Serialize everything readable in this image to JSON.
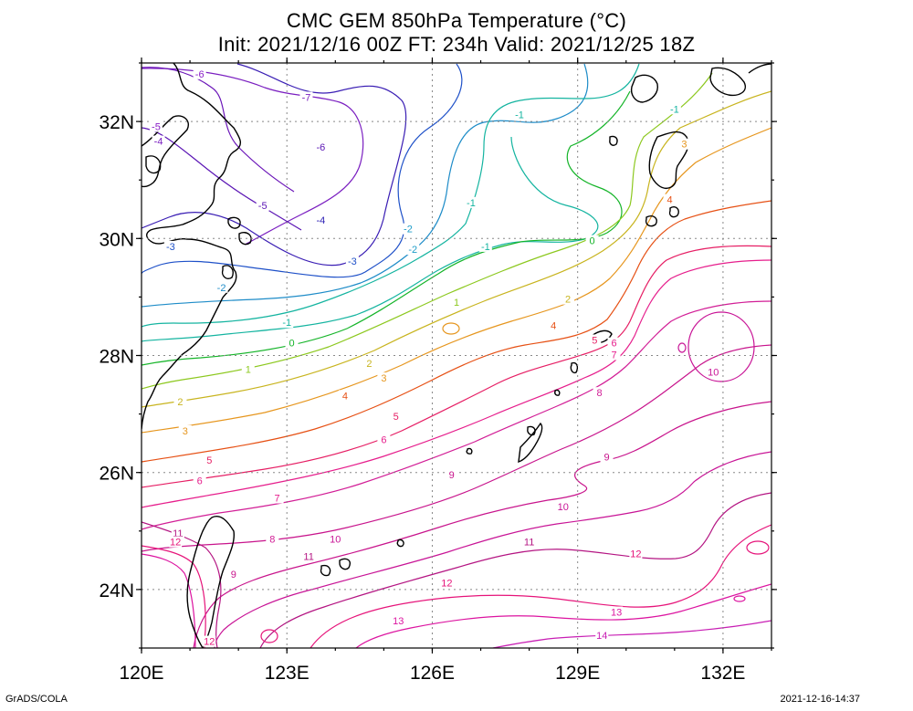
{
  "title": {
    "line1": "CMC GEM 850hPa Temperature (°C)",
    "line2": "Init: 2021/12/16 00Z  FT: 234h  Valid: 2021/12/25 18Z"
  },
  "axes": {
    "lon_ticks": [
      "120E",
      "123E",
      "126E",
      "129E",
      "132E"
    ],
    "lat_ticks": [
      "32N",
      "30N",
      "28N",
      "26N",
      "24N"
    ]
  },
  "footer": {
    "software": "GrADS/COLA",
    "timestamp": "2021-12-16-14:37"
  },
  "map": {
    "lon_range": [
      120,
      133
    ],
    "lat_range": [
      23,
      33
    ],
    "contour_interval_c": 1,
    "grid": "dotted",
    "contour_labels": [
      {
        "value": "-6",
        "lon": 121.2,
        "lat": 32.8,
        "color": "#8a1ec8"
      },
      {
        "value": "-7",
        "lon": 123.4,
        "lat": 32.4,
        "color": "#7a1ec0"
      },
      {
        "value": "-5",
        "lon": 120.3,
        "lat": 31.9,
        "color": "#8a1ec8"
      },
      {
        "value": "-4",
        "lon": 120.35,
        "lat": 31.65,
        "color": "#7a1ec0"
      },
      {
        "value": "-6",
        "lon": 123.7,
        "lat": 31.55,
        "color": "#5a14b4"
      },
      {
        "value": "-5",
        "lon": 122.5,
        "lat": 30.55,
        "color": "#5a14b4"
      },
      {
        "value": "-4",
        "lon": 123.7,
        "lat": 30.3,
        "color": "#2a1eb4"
      },
      {
        "value": "-3",
        "lon": 120.6,
        "lat": 29.85,
        "color": "#1e50c8"
      },
      {
        "value": "-3",
        "lon": 124.35,
        "lat": 29.6,
        "color": "#1e50c8"
      },
      {
        "value": "-2",
        "lon": 121.65,
        "lat": 29.15,
        "color": "#1e8cc8"
      },
      {
        "value": "-2",
        "lon": 125.5,
        "lat": 30.15,
        "color": "#1e9cc8"
      },
      {
        "value": "-2",
        "lon": 125.6,
        "lat": 29.8,
        "color": "#1e9cc8"
      },
      {
        "value": "-1",
        "lon": 127.8,
        "lat": 32.1,
        "color": "#14b4a0"
      },
      {
        "value": "-1",
        "lon": 126.8,
        "lat": 30.6,
        "color": "#14b4a0"
      },
      {
        "value": "-1",
        "lon": 127.1,
        "lat": 29.85,
        "color": "#14b4a0"
      },
      {
        "value": "-1",
        "lon": 123.0,
        "lat": 28.55,
        "color": "#14b4a0"
      },
      {
        "value": "0",
        "lon": 129.3,
        "lat": 29.95,
        "color": "#14b428"
      },
      {
        "value": "0",
        "lon": 123.1,
        "lat": 28.2,
        "color": "#14b428"
      },
      {
        "value": "1",
        "lon": 126.5,
        "lat": 28.9,
        "color": "#8cc81e"
      },
      {
        "value": "1",
        "lon": 122.2,
        "lat": 27.75,
        "color": "#8cc81e"
      },
      {
        "value": "-1",
        "lon": 131.0,
        "lat": 32.2,
        "color": "#14b4a0"
      },
      {
        "value": "2",
        "lon": 128.8,
        "lat": 28.95,
        "color": "#c8b41e"
      },
      {
        "value": "2",
        "lon": 124.7,
        "lat": 27.85,
        "color": "#c8b41e"
      },
      {
        "value": "2",
        "lon": 120.8,
        "lat": 27.2,
        "color": "#c8b41e"
      },
      {
        "value": "3",
        "lon": 131.2,
        "lat": 31.6,
        "color": "#e6961e"
      },
      {
        "value": "3",
        "lon": 125.0,
        "lat": 27.6,
        "color": "#e6961e"
      },
      {
        "value": "3",
        "lon": 120.9,
        "lat": 26.7,
        "color": "#e6961e"
      },
      {
        "value": "4",
        "lon": 130.9,
        "lat": 30.65,
        "color": "#e65014"
      },
      {
        "value": "4",
        "lon": 128.5,
        "lat": 28.5,
        "color": "#e65014"
      },
      {
        "value": "4",
        "lon": 124.2,
        "lat": 27.3,
        "color": "#e65014"
      },
      {
        "value": "5",
        "lon": 129.35,
        "lat": 28.25,
        "color": "#e61e64"
      },
      {
        "value": "5",
        "lon": 125.25,
        "lat": 26.95,
        "color": "#e61e64"
      },
      {
        "value": "5",
        "lon": 121.4,
        "lat": 26.2,
        "color": "#e61e64"
      },
      {
        "value": "6",
        "lon": 129.75,
        "lat": 28.2,
        "color": "#e61e8c"
      },
      {
        "value": "6",
        "lon": 125.0,
        "lat": 26.55,
        "color": "#e61e8c"
      },
      {
        "value": "6",
        "lon": 121.2,
        "lat": 25.85,
        "color": "#e61e8c"
      },
      {
        "value": "7",
        "lon": 129.75,
        "lat": 28.0,
        "color": "#e61e8c"
      },
      {
        "value": "7",
        "lon": 122.8,
        "lat": 25.55,
        "color": "#e61e8c"
      },
      {
        "value": "8",
        "lon": 129.45,
        "lat": 27.35,
        "color": "#d21e96"
      },
      {
        "value": "8",
        "lon": 122.7,
        "lat": 24.85,
        "color": "#d21e96"
      },
      {
        "value": "9",
        "lon": 129.6,
        "lat": 26.25,
        "color": "#c8148c"
      },
      {
        "value": "9",
        "lon": 126.4,
        "lat": 25.95,
        "color": "#c8148c"
      },
      {
        "value": "9",
        "lon": 121.9,
        "lat": 24.25,
        "color": "#c8148c"
      },
      {
        "value": "10",
        "lon": 131.8,
        "lat": 27.7,
        "color": "#c81496"
      },
      {
        "value": "10",
        "lon": 128.7,
        "lat": 25.4,
        "color": "#c81496"
      },
      {
        "value": "10",
        "lon": 124.0,
        "lat": 24.85,
        "color": "#c81496"
      },
      {
        "value": "11",
        "lon": 128.0,
        "lat": 24.8,
        "color": "#b41482"
      },
      {
        "value": "11",
        "lon": 123.45,
        "lat": 24.55,
        "color": "#b41482"
      },
      {
        "value": "11",
        "lon": 120.75,
        "lat": 24.95,
        "color": "#b41482"
      },
      {
        "value": "12",
        "lon": 130.2,
        "lat": 24.6,
        "color": "#e6147a"
      },
      {
        "value": "12",
        "lon": 126.3,
        "lat": 24.1,
        "color": "#e6147a"
      },
      {
        "value": "12",
        "lon": 121.4,
        "lat": 23.1,
        "color": "#e6147a"
      },
      {
        "value": "12",
        "lon": 120.7,
        "lat": 24.8,
        "color": "#e6147a"
      },
      {
        "value": "13",
        "lon": 129.8,
        "lat": 23.6,
        "color": "#dc14a0"
      },
      {
        "value": "13",
        "lon": 125.3,
        "lat": 23.45,
        "color": "#dc14a0"
      },
      {
        "value": "14",
        "lon": 129.5,
        "lat": 23.2,
        "color": "#c81eb4"
      }
    ]
  }
}
